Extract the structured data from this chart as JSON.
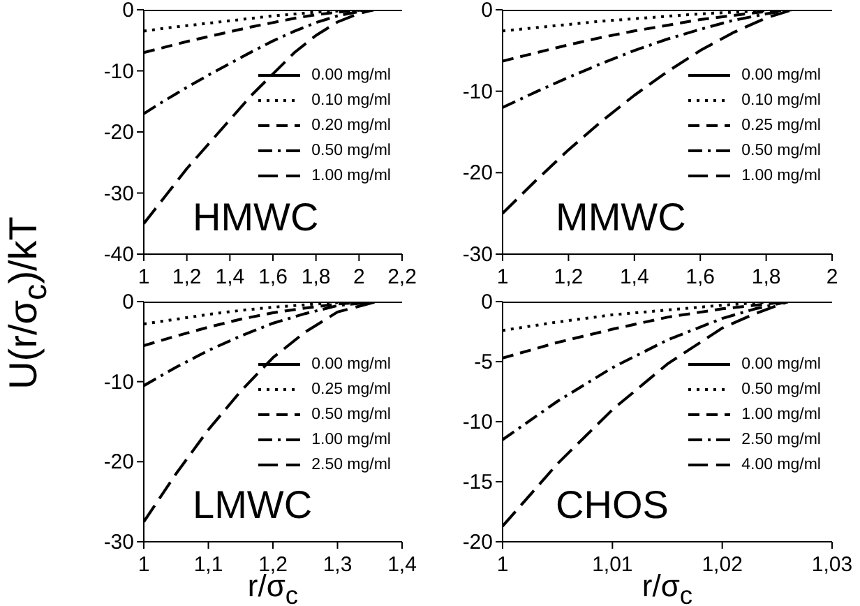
{
  "chart_data": [
    {
      "type": "line",
      "ylabel": "U(r/σ$_{c}$)/kT",
      "annotations": [
        "HMWC"
      ],
      "legend": "right",
      "x": [
        1,
        1.1,
        1.2,
        1.3,
        1.4,
        1.5,
        1.6,
        1.7,
        1.8,
        1.9,
        2.0,
        2.07,
        2.2
      ],
      "xlim": [
        1,
        2.2
      ],
      "xticks": [
        {
          "value": 1,
          "label": "1"
        },
        {
          "value": 1.2,
          "label": "1,2"
        },
        {
          "value": 1.4,
          "label": "1,4"
        },
        {
          "value": 1.6,
          "label": "1,6"
        },
        {
          "value": 1.8,
          "label": "1,8"
        },
        {
          "value": 2,
          "label": "2"
        },
        {
          "value": 2.2,
          "label": "2,2"
        }
      ],
      "ylim": [
        -40,
        0
      ],
      "yticks": [
        -40,
        -30,
        -20,
        -10,
        0
      ],
      "series": [
        {
          "name": "0.00 mg/ml",
          "color": "#000000",
          "line_style": "solid",
          "values": [
            0,
            0,
            0,
            0,
            0,
            0,
            0,
            0,
            0,
            0,
            0,
            0,
            0
          ]
        },
        {
          "name": "0.10 mg/ml",
          "color": "#000000",
          "line_style": "dotted",
          "values": [
            -3.5,
            -3,
            -2.6,
            -2.2,
            -1.8,
            -1.4,
            -1,
            -0.7,
            -0.4,
            -0.2,
            -0.1,
            0,
            0
          ]
        },
        {
          "name": "0.20 mg/ml",
          "color": "#000000",
          "line_style": "dashed",
          "values": [
            -7,
            -6.1,
            -5.2,
            -4.4,
            -3.6,
            -2.8,
            -2.1,
            -1.4,
            -0.8,
            -0.4,
            -0.1,
            0,
            0
          ]
        },
        {
          "name": "0.50 mg/ml",
          "color": "#000000",
          "line_style": "dashdot",
          "values": [
            -17,
            -14.8,
            -12.7,
            -10.7,
            -8.8,
            -6.9,
            -5.1,
            -3.5,
            -2.1,
            -1,
            -0.3,
            0,
            0
          ]
        },
        {
          "name": "1.00 mg/ml",
          "color": "#000000",
          "line_style": "longdash",
          "values": [
            -35,
            -30.5,
            -26,
            -22,
            -18,
            -14,
            -10.5,
            -7,
            -4.2,
            -2,
            -0.6,
            0,
            0
          ]
        }
      ]
    },
    {
      "type": "line",
      "annotations": [
        "MMWC"
      ],
      "legend": "right",
      "x": [
        1,
        1.1,
        1.2,
        1.3,
        1.4,
        1.5,
        1.6,
        1.7,
        1.8,
        1.88,
        2
      ],
      "xlim": [
        1,
        2
      ],
      "xticks": [
        {
          "value": 1,
          "label": "1"
        },
        {
          "value": 1.2,
          "label": "1,2"
        },
        {
          "value": 1.4,
          "label": "1,4"
        },
        {
          "value": 1.6,
          "label": "1,6"
        },
        {
          "value": 1.8,
          "label": "1,8"
        },
        {
          "value": 2,
          "label": "2"
        }
      ],
      "ylim": [
        -30,
        0
      ],
      "yticks": [
        -30,
        -20,
        -10,
        0
      ],
      "series": [
        {
          "name": "0.00 mg/ml",
          "color": "#000000",
          "line_style": "solid",
          "values": [
            0,
            0,
            0,
            0,
            0,
            0,
            0,
            0,
            0,
            0,
            0
          ]
        },
        {
          "name": "0.10 mg/ml",
          "color": "#000000",
          "line_style": "dotted",
          "values": [
            -2.6,
            -2.2,
            -1.8,
            -1.4,
            -1.1,
            -0.8,
            -0.5,
            -0.3,
            -0.1,
            0,
            0
          ]
        },
        {
          "name": "0.25 mg/ml",
          "color": "#000000",
          "line_style": "dashed",
          "values": [
            -6.3,
            -5.3,
            -4.3,
            -3.4,
            -2.6,
            -1.9,
            -1.2,
            -0.7,
            -0.2,
            0,
            0
          ]
        },
        {
          "name": "0.50 mg/ml",
          "color": "#000000",
          "line_style": "dashdot",
          "values": [
            -12,
            -10.1,
            -8.3,
            -6.6,
            -5,
            -3.6,
            -2.4,
            -1.3,
            -0.5,
            0,
            0
          ]
        },
        {
          "name": "1.00 mg/ml",
          "color": "#000000",
          "line_style": "longdash",
          "values": [
            -25,
            -21,
            -17.2,
            -13.7,
            -10.5,
            -7.6,
            -5,
            -2.8,
            -1,
            0,
            0
          ]
        }
      ]
    },
    {
      "type": "line",
      "xlabel": "r/σ$_{c}$",
      "annotations": [
        "LMWC"
      ],
      "legend": "right",
      "x": [
        1,
        1.05,
        1.1,
        1.15,
        1.2,
        1.25,
        1.3,
        1.36,
        1.4
      ],
      "xlim": [
        1,
        1.4
      ],
      "xticks": [
        {
          "value": 1,
          "label": "1"
        },
        {
          "value": 1.1,
          "label": "1,1"
        },
        {
          "value": 1.2,
          "label": "1,2"
        },
        {
          "value": 1.3,
          "label": "1,3"
        },
        {
          "value": 1.4,
          "label": "1,4"
        }
      ],
      "ylim": [
        -30,
        0
      ],
      "yticks": [
        -30,
        -20,
        -10,
        0
      ],
      "series": [
        {
          "name": "0.00 mg/ml",
          "color": "#000000",
          "line_style": "solid",
          "values": [
            0,
            0,
            0,
            0,
            0,
            0,
            0,
            0,
            0
          ]
        },
        {
          "name": "0.25 mg/ml",
          "color": "#000000",
          "line_style": "dotted",
          "values": [
            -2.8,
            -2.2,
            -1.6,
            -1.1,
            -0.7,
            -0.4,
            -0.1,
            0,
            0
          ]
        },
        {
          "name": "0.50 mg/ml",
          "color": "#000000",
          "line_style": "dashed",
          "values": [
            -5.5,
            -4.3,
            -3.2,
            -2.2,
            -1.4,
            -0.8,
            -0.3,
            0,
            0
          ]
        },
        {
          "name": "1.00 mg/ml",
          "color": "#000000",
          "line_style": "dashdot",
          "values": [
            -10.5,
            -8.2,
            -6.1,
            -4.3,
            -2.7,
            -1.5,
            -0.5,
            0,
            0
          ]
        },
        {
          "name": "2.50 mg/ml",
          "color": "#000000",
          "line_style": "longdash",
          "values": [
            -27.5,
            -21.5,
            -16,
            -11.2,
            -7,
            -3.8,
            -1.3,
            0,
            0
          ]
        }
      ]
    },
    {
      "type": "line",
      "xlabel": "r/σ$_{c}$",
      "annotations": [
        "CHOS"
      ],
      "legend": "right",
      "x": [
        1,
        1.005,
        1.01,
        1.015,
        1.02,
        1.023,
        1.026,
        1.03
      ],
      "xlim": [
        1,
        1.03
      ],
      "xticks": [
        {
          "value": 1,
          "label": "1"
        },
        {
          "value": 1.01,
          "label": "1,01"
        },
        {
          "value": 1.02,
          "label": "1,02"
        },
        {
          "value": 1.03,
          "label": "1,03"
        }
      ],
      "ylim": [
        -20,
        0
      ],
      "yticks": [
        -20,
        -15,
        -10,
        -5,
        0
      ],
      "series": [
        {
          "name": "0.00 mg/ml",
          "color": "#000000",
          "line_style": "solid",
          "values": [
            0,
            0,
            0,
            0,
            0,
            0,
            0,
            0
          ]
        },
        {
          "name": "0.50 mg/ml",
          "color": "#000000",
          "line_style": "dotted",
          "values": [
            -2.4,
            -1.7,
            -1.1,
            -0.7,
            -0.3,
            -0.1,
            0,
            0
          ]
        },
        {
          "name": "1.00 mg/ml",
          "color": "#000000",
          "line_style": "dashed",
          "values": [
            -4.7,
            -3.4,
            -2.3,
            -1.3,
            -0.6,
            -0.3,
            0,
            0
          ]
        },
        {
          "name": "2.50 mg/ml",
          "color": "#000000",
          "line_style": "dashdot",
          "values": [
            -11.5,
            -8.3,
            -5.5,
            -3.2,
            -1.4,
            -0.6,
            0,
            0
          ]
        },
        {
          "name": "4.00 mg/ml",
          "color": "#000000",
          "line_style": "longdash",
          "values": [
            -18.7,
            -13.5,
            -9,
            -5.2,
            -2.2,
            -1,
            0,
            0
          ]
        }
      ]
    }
  ]
}
